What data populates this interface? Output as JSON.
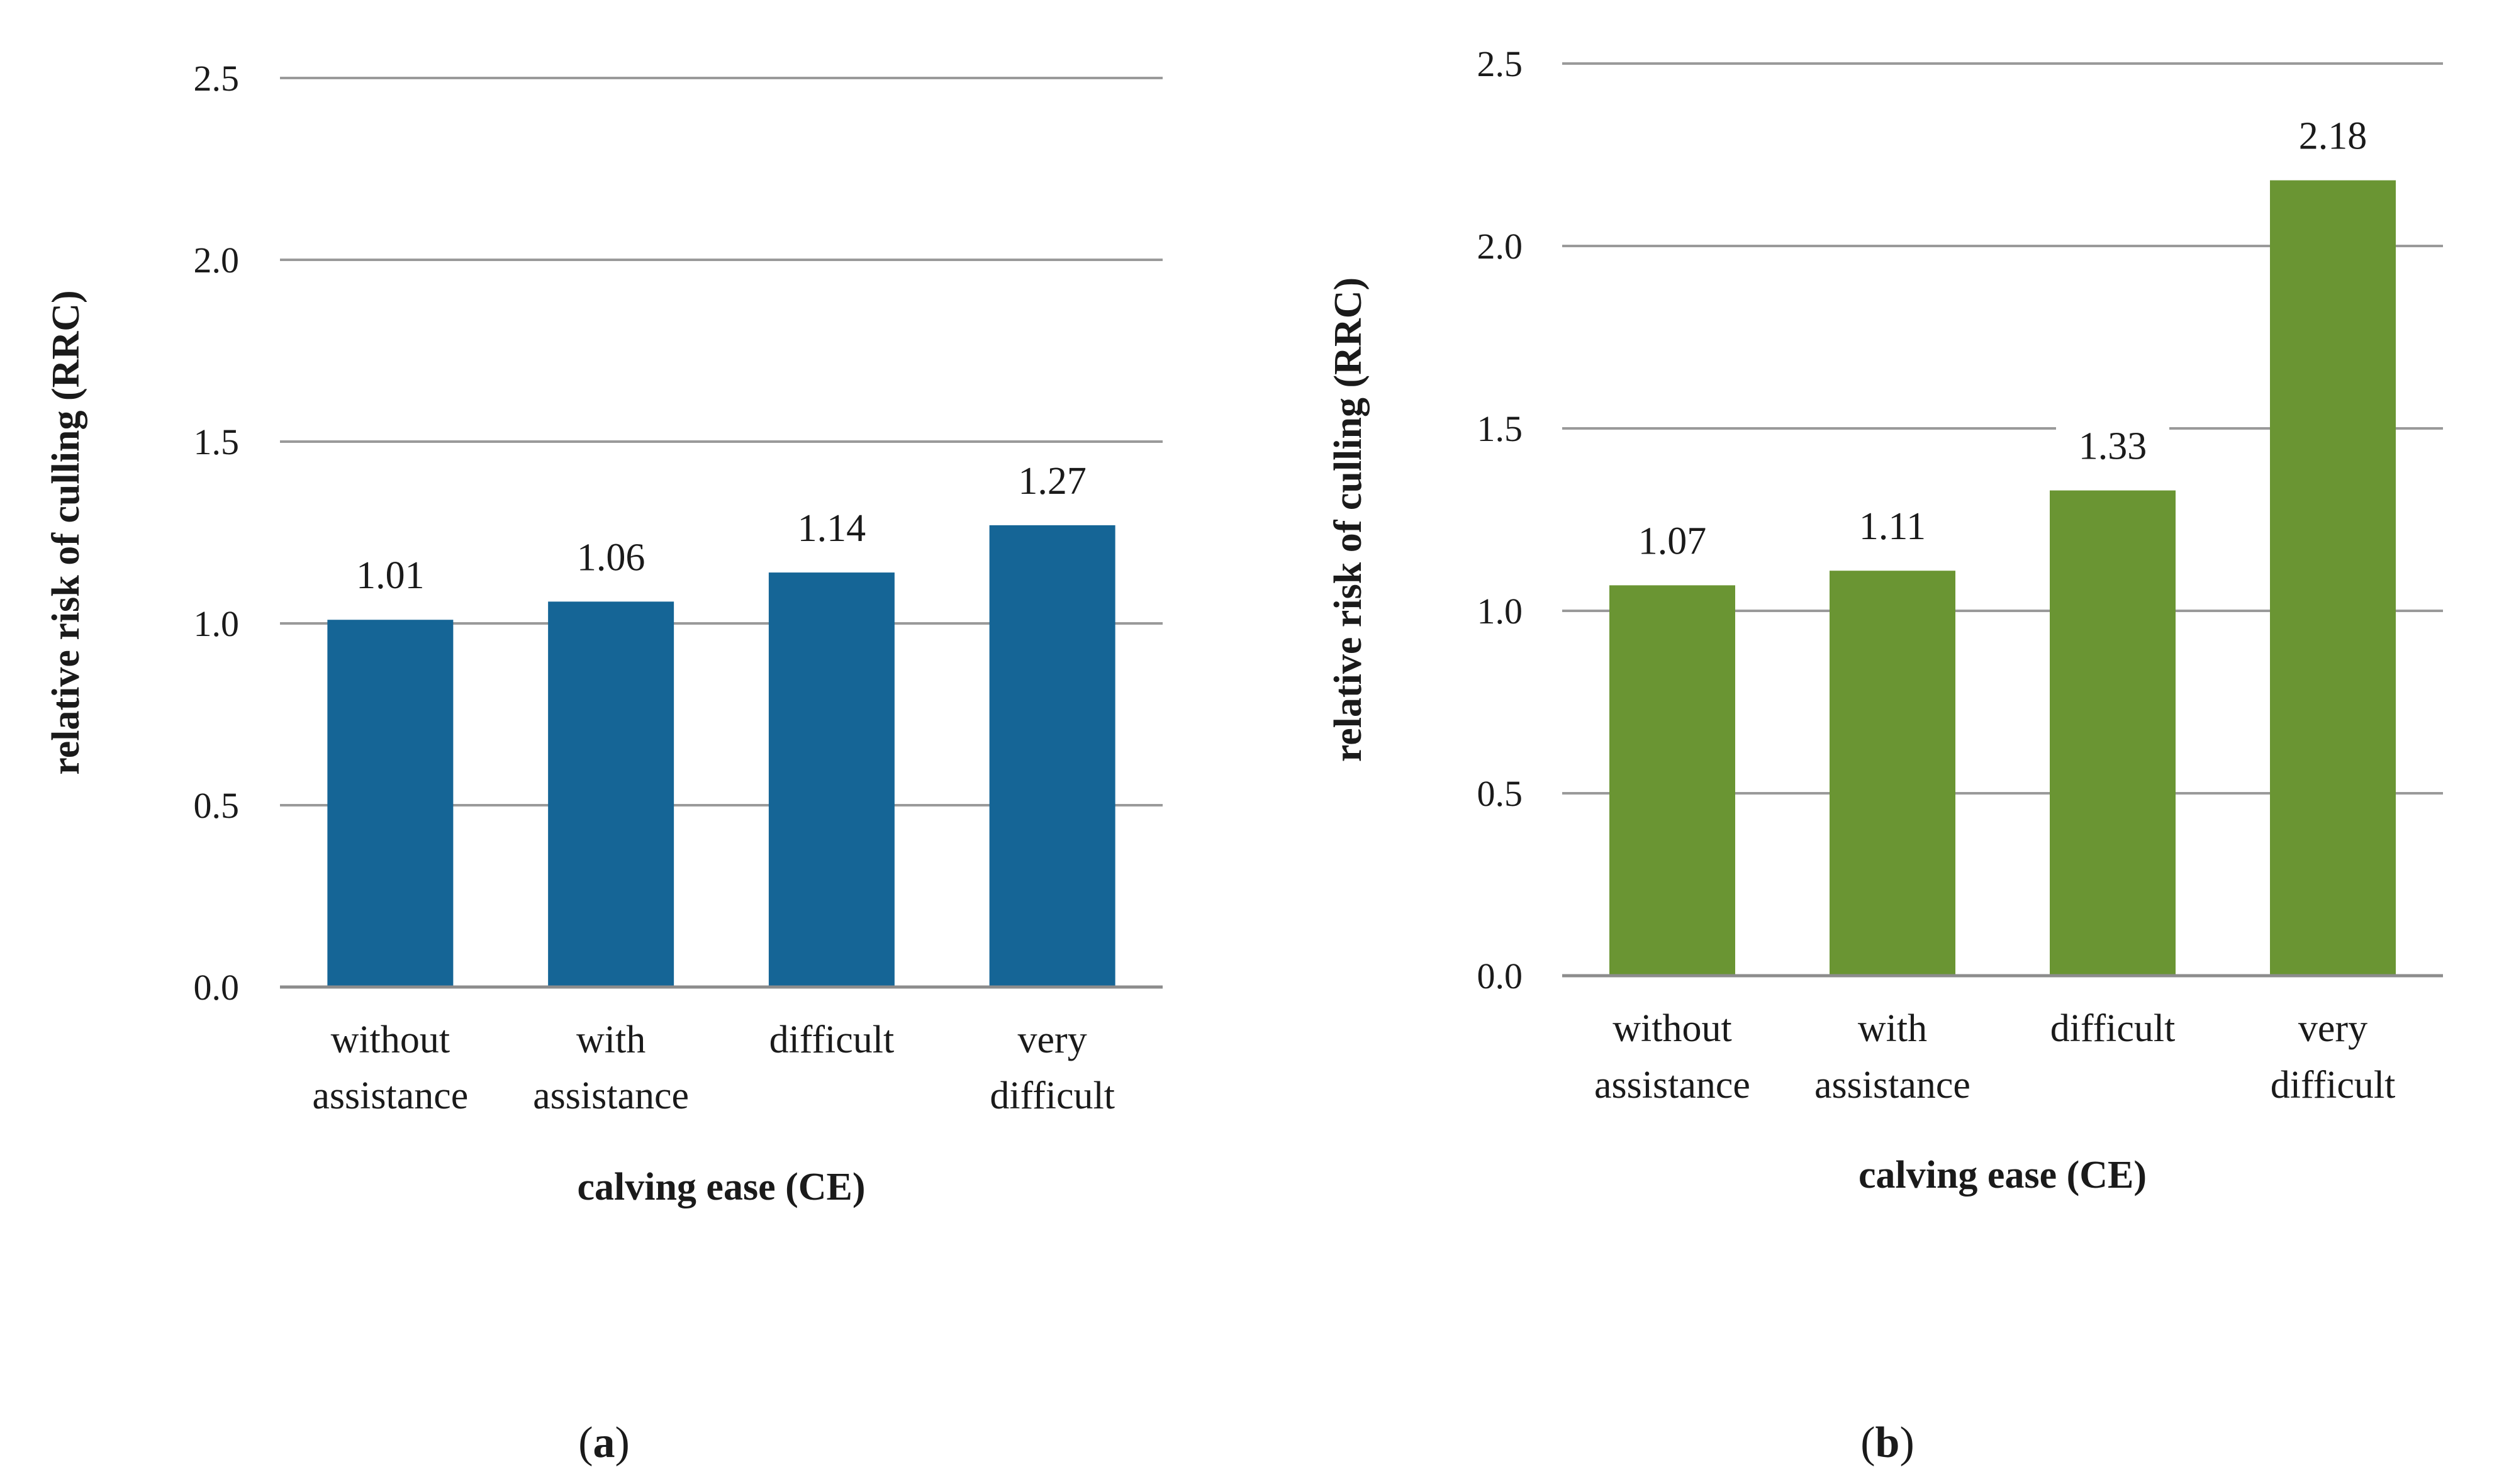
{
  "chart_data": [
    {
      "type": "bar",
      "panel_label": "a",
      "title": "",
      "xlabel": "calving ease (CE)",
      "ylabel": "relative risk of culling (RRC)",
      "categories": [
        [
          "without",
          "assistance"
        ],
        [
          "with",
          "assistance"
        ],
        [
          "difficult"
        ],
        [
          "very",
          "difficult"
        ]
      ],
      "values": [
        1.01,
        1.06,
        1.14,
        1.27
      ],
      "value_labels": [
        "1.01",
        "1.06",
        "1.14",
        "1.27"
      ],
      "ylim": [
        0,
        2.5
      ],
      "yticks": [
        "0.0",
        "0.5",
        "1.0",
        "1.5",
        "2.0",
        "2.5"
      ],
      "grid": true,
      "bar_color": "#156596"
    },
    {
      "type": "bar",
      "panel_label": "b",
      "title": "",
      "xlabel": "calving ease (CE)",
      "ylabel": "relative risk of culling (RRC)",
      "categories": [
        [
          "without",
          "assistance"
        ],
        [
          "with",
          "assistance"
        ],
        [
          "difficult"
        ],
        [
          "very",
          "difficult"
        ]
      ],
      "values": [
        1.07,
        1.11,
        1.33,
        2.18
      ],
      "value_labels": [
        "1.07",
        "1.11",
        "1.33",
        "2.18"
      ],
      "ylim": [
        0,
        2.5
      ],
      "yticks": [
        "0.0",
        "0.5",
        "1.0",
        "1.5",
        "2.0",
        "2.5"
      ],
      "grid": true,
      "bar_color": "#6a9533"
    }
  ],
  "colors": {
    "gridline": "#9a9a9a",
    "axis": "#8c8c8c"
  }
}
